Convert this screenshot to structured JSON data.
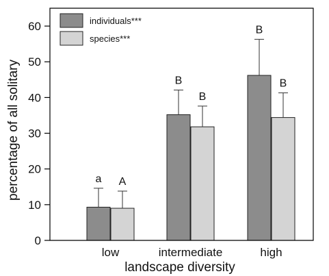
{
  "chart_data": {
    "type": "bar",
    "categories": [
      "low",
      "intermediate",
      "high"
    ],
    "series": [
      {
        "name": "individuals***",
        "color": "#8c8c8c",
        "values": [
          9.3,
          35.2,
          46.2
        ],
        "error_upper": [
          14.6,
          42.1,
          56.3
        ],
        "labels": [
          "a",
          "B",
          "B"
        ]
      },
      {
        "name": "species***",
        "color": "#d4d4d4",
        "values": [
          9.0,
          31.8,
          34.4
        ],
        "error_upper": [
          13.8,
          37.6,
          41.3
        ],
        "labels": [
          "A",
          "B",
          "B"
        ]
      }
    ],
    "ylim": [
      0,
      65
    ],
    "yticks": [
      "0",
      "10",
      "20",
      "30",
      "40",
      "50",
      "60"
    ],
    "xlabel": "landscape diversity",
    "ylabel": "percentage of all solitary",
    "legend_position": "top-left"
  }
}
